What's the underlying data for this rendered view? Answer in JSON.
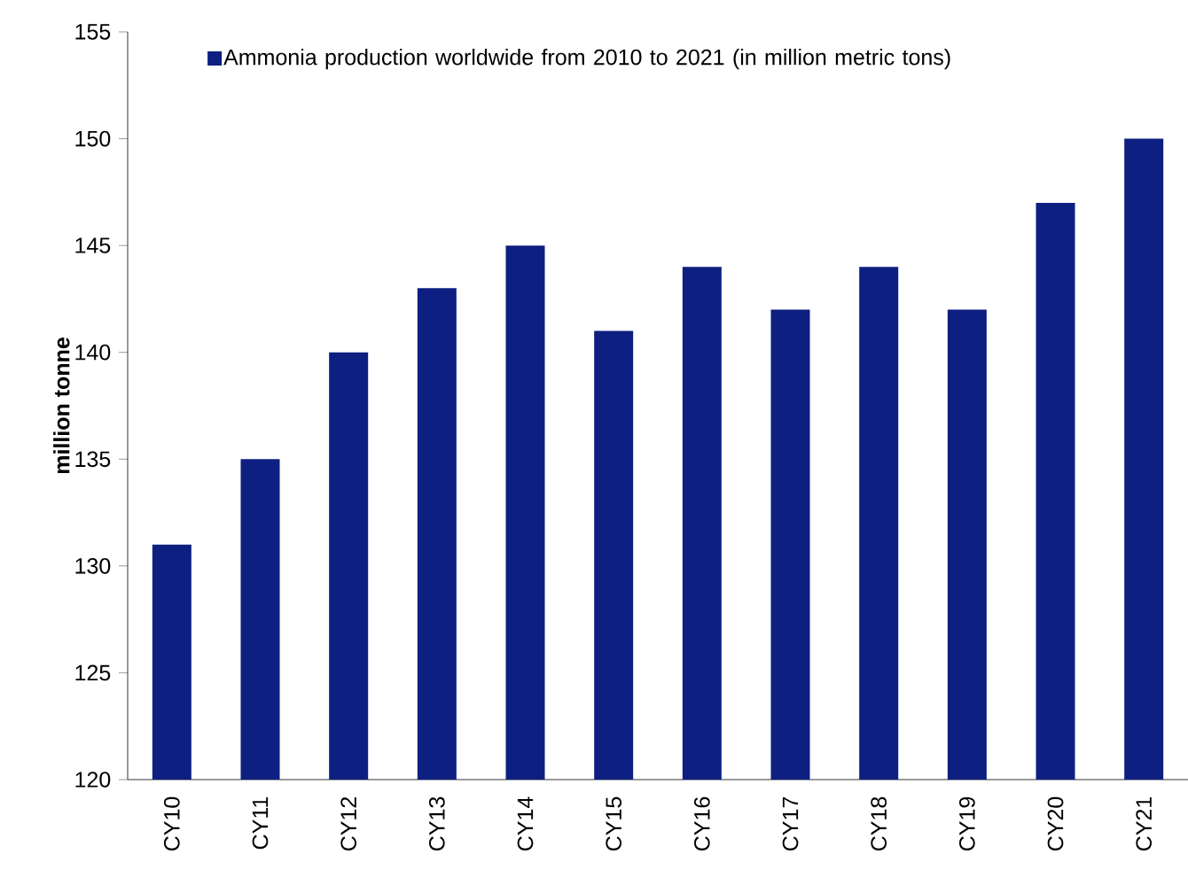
{
  "chart_data": {
    "type": "bar",
    "ylabel": "million tonne",
    "categories": [
      "CY10",
      "CY11",
      "CY12",
      "CY13",
      "CY14",
      "CY15",
      "CY16",
      "CY17",
      "CY18",
      "CY19",
      "CY20",
      "CY21"
    ],
    "series": [
      {
        "name": "Ammonia production worldwide from 2010 to 2021 (in million metric tons)",
        "color": "#0d1f80",
        "values": [
          131,
          135,
          140,
          143,
          145,
          141,
          144,
          142,
          144,
          142,
          147,
          150
        ]
      }
    ],
    "ylim": [
      120,
      155
    ],
    "yticks": [
      120,
      125,
      130,
      135,
      140,
      145,
      150,
      155
    ],
    "grid": false,
    "legend": "top left"
  }
}
